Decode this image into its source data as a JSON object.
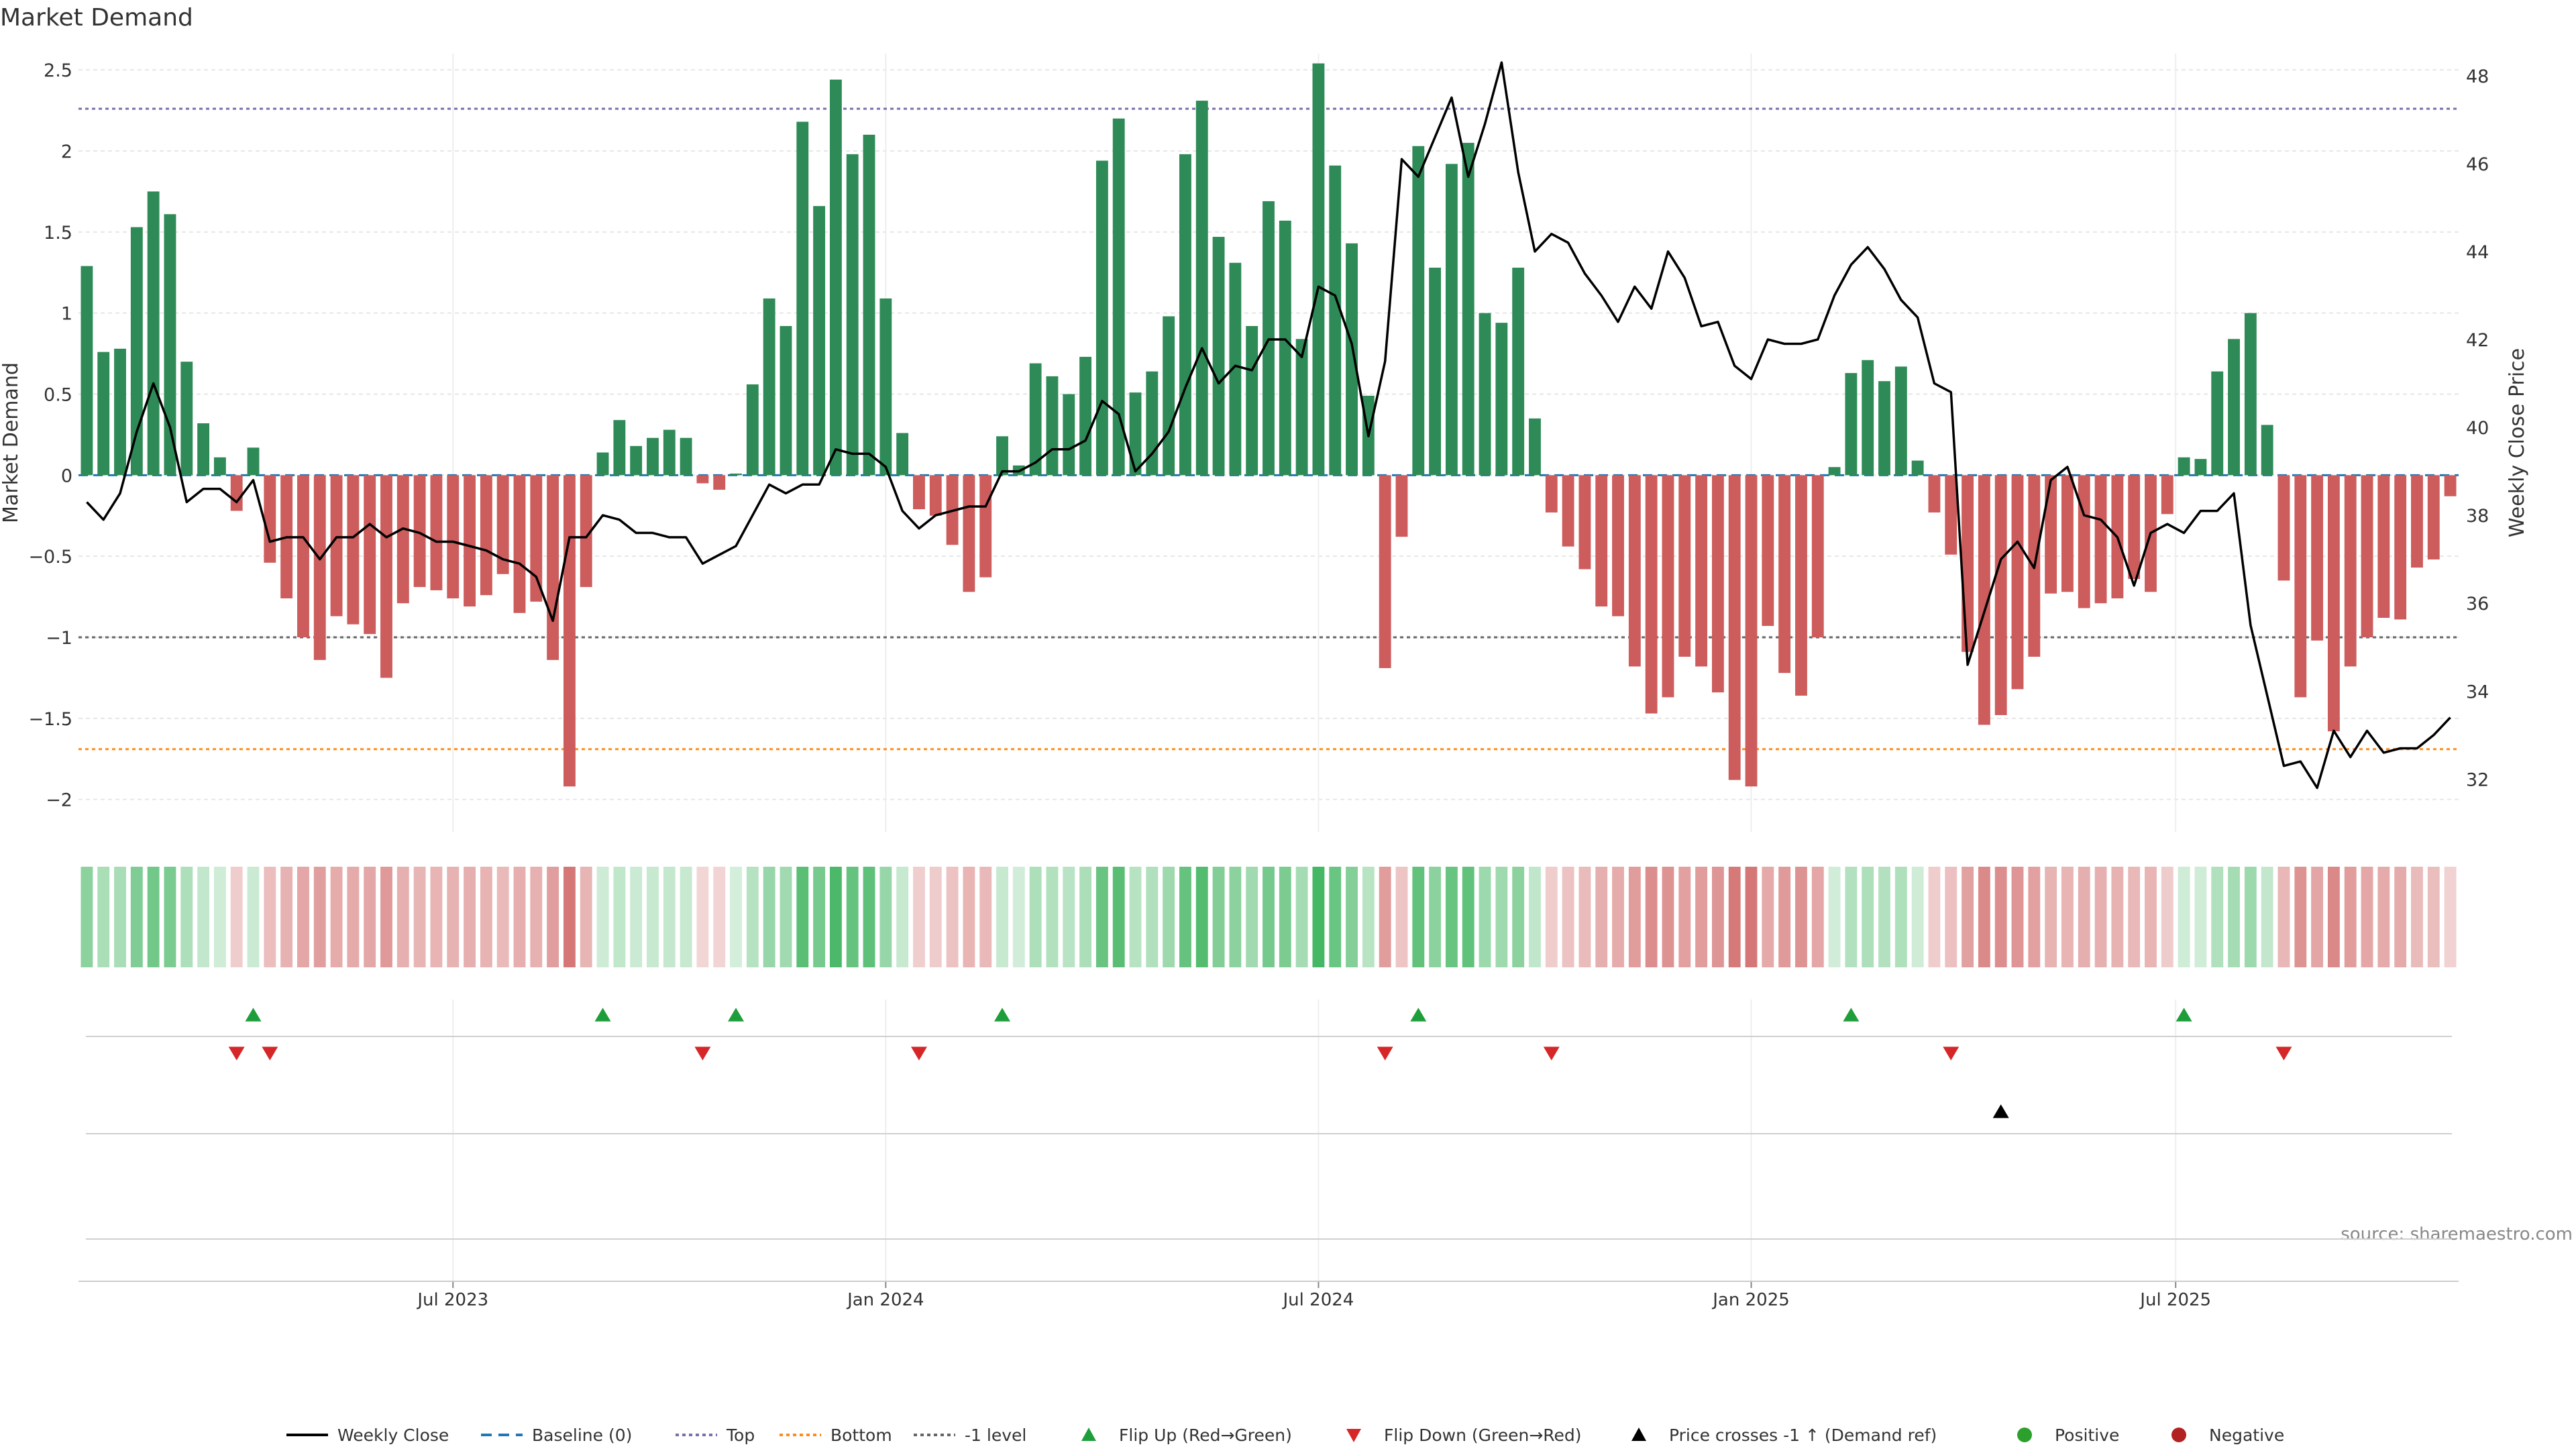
{
  "chart_data": {
    "type": "bar",
    "title": "Market Demand",
    "ylabel": "Market Demand",
    "y2label": "Weekly Close Price",
    "source": "source: sharemaestro.com",
    "ylim": [
      -2.2,
      2.6
    ],
    "y2lim": [
      30.8,
      48.5
    ],
    "yticks": [
      2.5,
      2,
      1.5,
      1,
      0.5,
      0,
      -0.5,
      -1,
      -1.5,
      -2
    ],
    "yticklabels": [
      "2.5",
      "2",
      "1.5",
      "1",
      "0.5",
      "0",
      "−0.5",
      "−1",
      "−1.5",
      "−2"
    ],
    "y2ticks": [
      48,
      46,
      44,
      42,
      40,
      38,
      36,
      34,
      32
    ],
    "x_tick_labels": [
      {
        "label": "Jul 2023",
        "index": 22
      },
      {
        "label": "Jan 2024",
        "index": 48
      },
      {
        "label": "Jul 2024",
        "index": 74
      },
      {
        "label": "Jan 2025",
        "index": 100
      },
      {
        "label": "Jul 2025",
        "index": 125.5
      }
    ],
    "reference_lines": {
      "top": 2.26,
      "bottom": -1.69,
      "minus_one": -1.0
    },
    "colors": {
      "positive": "#2e8b57",
      "negative": "#cd5c5c",
      "price": "#000000",
      "baseline": "#1f77b4",
      "top": "#7a6fa8",
      "bottom": "#ff8c1a",
      "minus_one": "#666666",
      "flip_up": "#1e9e3a",
      "flip_down": "#d62728",
      "cross": "#000000",
      "dot_positive": "#2ca02c",
      "dot_negative": "#b22222"
    },
    "series": [
      {
        "name": "Market Demand",
        "values": [
          1.29,
          0.76,
          0.78,
          1.53,
          1.75,
          1.61,
          0.7,
          0.32,
          0.11,
          -0.22,
          0.17,
          -0.54,
          -0.76,
          -1.0,
          -1.14,
          -0.87,
          -0.92,
          -0.98,
          -1.25,
          -0.79,
          -0.69,
          -0.71,
          -0.76,
          -0.81,
          -0.74,
          -0.61,
          -0.85,
          -0.78,
          -1.14,
          -1.92,
          -0.69,
          0.14,
          0.34,
          0.18,
          0.23,
          0.28,
          0.23,
          -0.05,
          -0.09,
          0.01,
          0.56,
          1.09,
          0.92,
          2.18,
          1.66,
          2.44,
          1.98,
          2.1,
          1.09,
          0.26,
          -0.21,
          -0.25,
          -0.43,
          -0.72,
          -0.63,
          0.24,
          0.06,
          0.69,
          0.61,
          0.5,
          0.73,
          1.94,
          2.2,
          0.51,
          0.64,
          0.98,
          1.98,
          2.31,
          1.47,
          1.31,
          0.92,
          1.69,
          1.57,
          0.84,
          2.54,
          1.91,
          1.43,
          0.49,
          -1.19,
          -0.38,
          2.03,
          1.28,
          1.92,
          2.05,
          1.0,
          0.94,
          1.28,
          0.35,
          -0.23,
          -0.44,
          -0.58,
          -0.81,
          -0.87,
          -1.18,
          -1.47,
          -1.37,
          -1.12,
          -1.18,
          -1.34,
          -1.88,
          -1.92,
          -0.93,
          -1.22,
          -1.36,
          -1.0,
          0.05,
          0.63,
          0.71,
          0.58,
          0.67,
          0.09,
          -0.23,
          -0.49,
          -1.09,
          -1.54,
          -1.48,
          -1.32,
          -1.12,
          -0.73,
          -0.72,
          -0.82,
          -0.79,
          -0.76,
          -0.64,
          -0.72,
          -0.24,
          0.11,
          0.1,
          0.64,
          0.84,
          1.0,
          0.31,
          -0.65,
          -1.37,
          -1.02,
          -1.58,
          -1.18,
          -1.0,
          -0.88,
          -0.89,
          -0.57,
          -0.52,
          -0.13
        ]
      },
      {
        "name": "Weekly Close",
        "values": [
          38.3,
          37.9,
          38.5,
          39.9,
          41.0,
          40.0,
          38.3,
          38.6,
          38.6,
          38.3,
          38.8,
          37.4,
          37.5,
          37.5,
          37.0,
          37.5,
          37.5,
          37.8,
          37.5,
          37.7,
          37.6,
          37.4,
          37.4,
          37.3,
          37.2,
          37.0,
          36.9,
          36.6,
          35.6,
          37.5,
          37.5,
          38.0,
          37.9,
          37.6,
          37.6,
          37.5,
          37.5,
          36.9,
          37.1,
          37.3,
          38.0,
          38.7,
          38.5,
          38.7,
          38.7,
          39.5,
          39.4,
          39.4,
          39.1,
          38.1,
          37.7,
          38.0,
          38.1,
          38.2,
          38.2,
          39.0,
          39.0,
          39.2,
          39.5,
          39.5,
          39.7,
          40.6,
          40.3,
          39.0,
          39.4,
          39.9,
          40.9,
          41.8,
          41.0,
          41.4,
          41.3,
          42.0,
          42.0,
          41.6,
          43.2,
          43.0,
          41.9,
          39.8,
          41.5,
          46.1,
          45.7,
          46.6,
          47.5,
          45.7,
          46.9,
          48.3,
          45.8,
          44.0,
          44.4,
          44.2,
          43.5,
          43.0,
          42.4,
          43.2,
          42.7,
          44.0,
          43.4,
          42.3,
          42.4,
          41.4,
          41.1,
          42.0,
          41.9,
          41.9,
          42.0,
          43.0,
          43.7,
          44.1,
          43.6,
          42.9,
          42.5,
          41.0,
          40.8,
          34.6,
          35.8,
          37.0,
          37.4,
          36.8,
          38.8,
          39.1,
          38.0,
          37.9,
          37.5,
          36.4,
          37.6,
          37.8,
          37.6,
          38.1,
          38.1,
          38.5,
          35.5,
          33.9,
          32.3,
          32.4,
          31.8,
          33.1,
          32.5,
          33.1,
          32.6,
          32.7,
          32.7,
          33.0,
          33.4
        ]
      }
    ],
    "heat_strip": {
      "positive_color": "#3cb35c",
      "negative_color": "#c94f4f",
      "min_alpha": 0.22,
      "max_alpha": 0.95
    },
    "events": {
      "flip_up_indices": [
        10,
        31,
        39,
        55,
        80,
        106,
        126
      ],
      "flip_down_indices": [
        9,
        11,
        37,
        50,
        78,
        88,
        112,
        132
      ],
      "price_cross_indices": [
        115
      ]
    },
    "legend": [
      {
        "label": "Weekly Close",
        "kind": "line-solid",
        "color": "#000000"
      },
      {
        "label": "Baseline (0)",
        "kind": "line-dash",
        "color": "#1f77b4"
      },
      {
        "label": "Top",
        "kind": "line-dot",
        "color": "#7a6fa8"
      },
      {
        "label": "Bottom",
        "kind": "line-dot",
        "color": "#ff8c1a"
      },
      {
        "label": "-1 level",
        "kind": "line-dot",
        "color": "#666666"
      },
      {
        "label": "Flip Up (Red→Green)",
        "kind": "tri-up",
        "color": "#1e9e3a"
      },
      {
        "label": "Flip Down (Green→Red)",
        "kind": "tri-down",
        "color": "#d62728"
      },
      {
        "label": "Price crosses -1 ↑ (Demand ref)",
        "kind": "tri-up",
        "color": "#000000"
      },
      {
        "label": "Positive",
        "kind": "dot",
        "color": "#2ca02c"
      },
      {
        "label": "Negative",
        "kind": "dot",
        "color": "#b22222"
      }
    ],
    "legend_placement": "bottom-center",
    "grid": true
  }
}
